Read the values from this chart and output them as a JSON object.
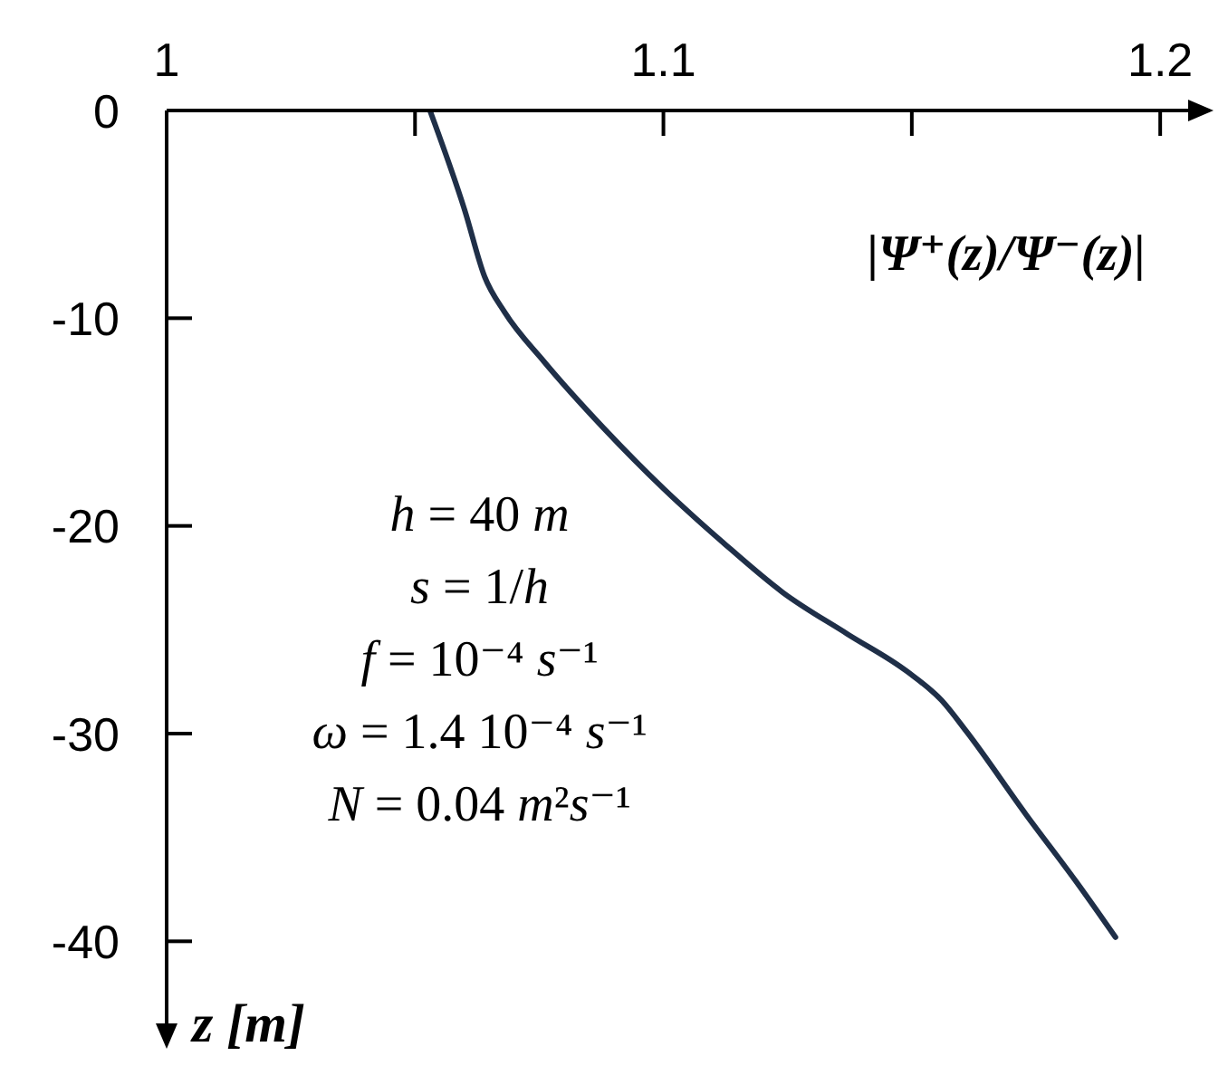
{
  "chart_data": {
    "type": "line",
    "xlabel": "|Ψ⁺(z)/Ψ⁻(z)|",
    "ylabel": "z [m]",
    "annotations": [
      "h = 40 m",
      "s = 1/h",
      "f = 10⁻⁴ s⁻¹",
      "ω = 1.4 10⁻⁴ s⁻¹",
      "N = 0.04 m²s⁻¹"
    ],
    "x": [
      1.053,
      1.06,
      1.064,
      1.068,
      1.076,
      1.088,
      1.1,
      1.112,
      1.124,
      1.137,
      1.149,
      1.156,
      1.161,
      1.173,
      1.183,
      1.191
    ],
    "values": [
      0,
      -4.8,
      -8.0,
      -9.7,
      -12.1,
      -15.3,
      -18.2,
      -20.8,
      -23.2,
      -25.2,
      -27.0,
      -28.4,
      -29.9,
      -33.9,
      -37.1,
      -39.8
    ],
    "color": "#1f2f48",
    "xlim": [
      1,
      1.21
    ],
    "xticks": [
      1,
      {
        "value": 1.05,
        "label": null
      },
      1.1,
      {
        "value": 1.15,
        "label": null
      },
      1.2
    ],
    "ylim": [
      -45,
      0
    ],
    "yticks": [
      0,
      -10,
      -20,
      -30,
      -40
    ]
  }
}
